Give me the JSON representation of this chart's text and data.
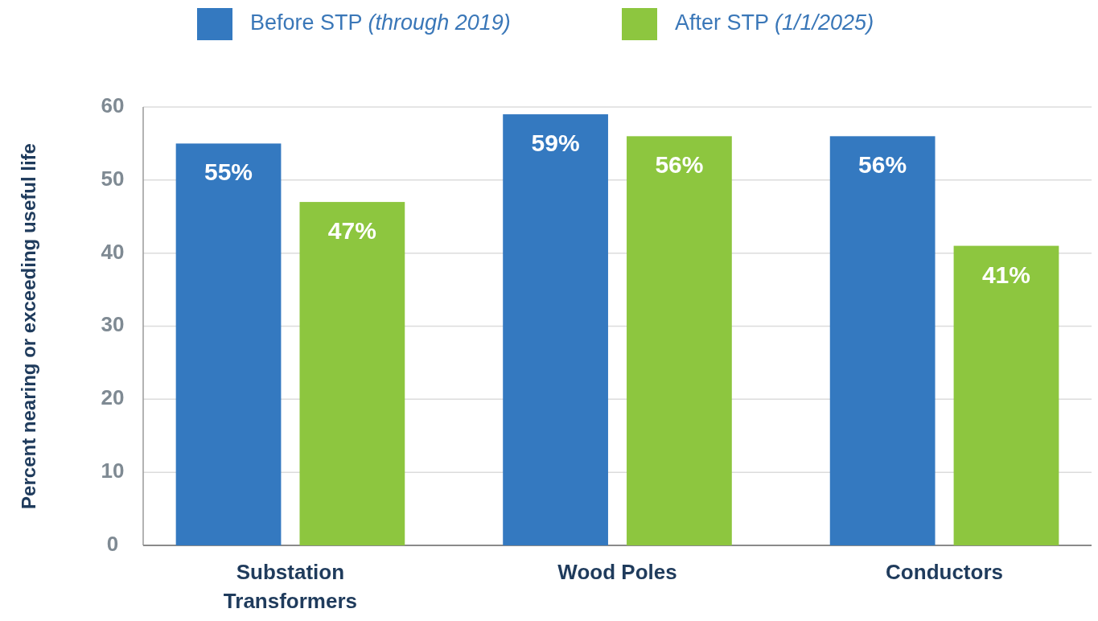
{
  "chart_data": {
    "type": "bar",
    "ylabel": "Percent nearing or exceeding useful life",
    "categories": [
      "Substation Transformers",
      "Wood Poles",
      "Conductors"
    ],
    "series": [
      {
        "name": "Before STP (through 2019)",
        "color": "#3479c0",
        "values": [
          55,
          59,
          56
        ],
        "value_labels": [
          "55%",
          "59%",
          "56%"
        ]
      },
      {
        "name": "After STP (1/1/2025)",
        "color": "#8dc63f",
        "values": [
          47,
          56,
          41
        ],
        "value_labels": [
          "47%",
          "56%",
          "41%"
        ]
      }
    ],
    "ylim": [
      0,
      60
    ],
    "yticks": [
      0,
      10,
      20,
      30,
      40,
      50,
      60
    ],
    "grid": "y",
    "legend": "top"
  }
}
